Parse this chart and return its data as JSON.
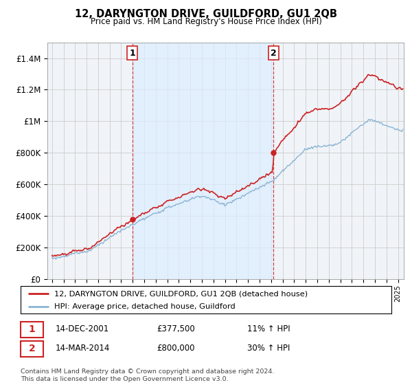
{
  "title": "12, DARYNGTON DRIVE, GUILDFORD, GU1 2QB",
  "subtitle": "Price paid vs. HM Land Registry's House Price Index (HPI)",
  "legend_line1": "12, DARYNGTON DRIVE, GUILDFORD, GU1 2QB (detached house)",
  "legend_line2": "HPI: Average price, detached house, Guildford",
  "sale1_date": "14-DEC-2001",
  "sale1_price": "£377,500",
  "sale1_hpi": "11% ↑ HPI",
  "sale2_date": "14-MAR-2014",
  "sale2_price": "£800,000",
  "sale2_hpi": "30% ↑ HPI",
  "footer": "Contains HM Land Registry data © Crown copyright and database right 2024.\nThis data is licensed under the Open Government Licence v3.0.",
  "sale1_year": 2001.96,
  "sale1_value": 377500,
  "sale2_year": 2014.21,
  "sale2_value": 800000,
  "hpi_color": "#8ab4d4",
  "price_color": "#cc2222",
  "vline_color": "#cc2222",
  "shade_color": "#ddeeff",
  "grid_color": "#cccccc",
  "bg_color": "#f0f4f8",
  "ylim": [
    0,
    1500000
  ],
  "xlim_start": 1994.6,
  "xlim_end": 2025.5,
  "yticks": [
    0,
    200000,
    400000,
    600000,
    800000,
    1000000,
    1200000,
    1400000
  ],
  "ytick_labels": [
    "£0",
    "£200K",
    "£400K",
    "£600K",
    "£800K",
    "£1M",
    "£1.2M",
    "£1.4M"
  ]
}
